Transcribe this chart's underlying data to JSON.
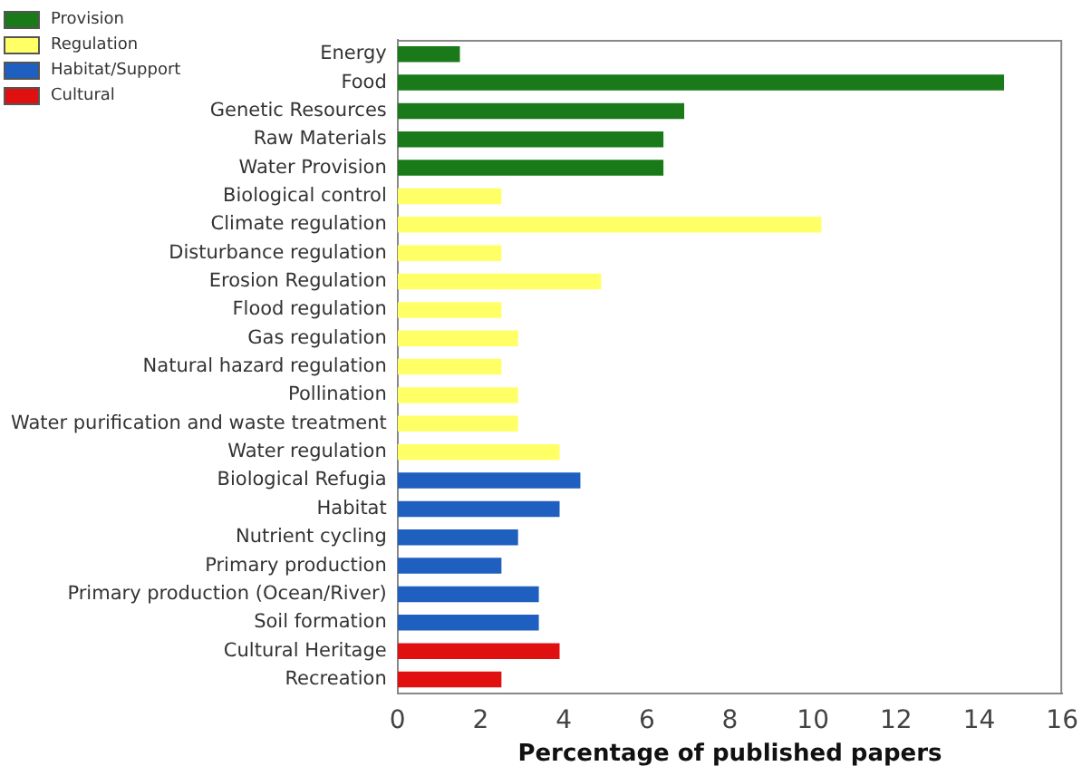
{
  "chart_data": {
    "type": "bar",
    "orientation": "horizontal",
    "xlabel": "Percentage of published papers",
    "categories": [
      "Energy",
      "Food",
      "Genetic Resources",
      "Raw Materials",
      "Water Provision",
      "Biological control",
      "Climate regulation",
      "Disturbance regulation",
      "Erosion Regulation",
      "Flood regulation",
      "Gas regulation",
      "Natural hazard regulation",
      "Pollination",
      "Water purification and waste treatment",
      "Water regulation",
      "Biological Refugia",
      "Habitat",
      "Nutrient cycling",
      "Primary production",
      "Primary production (Ocean/River)",
      "Soil formation",
      "Cultural Heritage",
      "Recreation"
    ],
    "series": [
      {
        "name": "Provision",
        "color": "#1a7a1a",
        "values": [
          1.5,
          14.6,
          6.9,
          6.4,
          6.4,
          null,
          null,
          null,
          null,
          null,
          null,
          null,
          null,
          null,
          null,
          null,
          null,
          null,
          null,
          null,
          null,
          null,
          null
        ]
      },
      {
        "name": "Regulation",
        "color": "#ffff66",
        "values": [
          null,
          null,
          null,
          null,
          null,
          2.5,
          10.2,
          2.5,
          4.9,
          2.5,
          2.9,
          2.5,
          2.9,
          2.9,
          3.9,
          null,
          null,
          null,
          null,
          null,
          null,
          null,
          null
        ]
      },
      {
        "name": "Habitat/Support",
        "color": "#1f5fbf",
        "values": [
          null,
          null,
          null,
          null,
          null,
          null,
          null,
          null,
          null,
          null,
          null,
          null,
          null,
          null,
          null,
          4.4,
          3.9,
          2.9,
          2.5,
          3.4,
          3.4,
          null,
          null
        ]
      },
      {
        "name": "Cultural",
        "color": "#e01010",
        "values": [
          null,
          null,
          null,
          null,
          null,
          null,
          null,
          null,
          null,
          null,
          null,
          null,
          null,
          null,
          null,
          null,
          null,
          null,
          null,
          null,
          null,
          3.9,
          2.5
        ]
      }
    ],
    "xlim": [
      0,
      16
    ],
    "xticks": [
      0,
      2,
      4,
      6,
      8,
      10,
      12,
      14,
      16
    ],
    "grid": false,
    "legend": "top left"
  }
}
